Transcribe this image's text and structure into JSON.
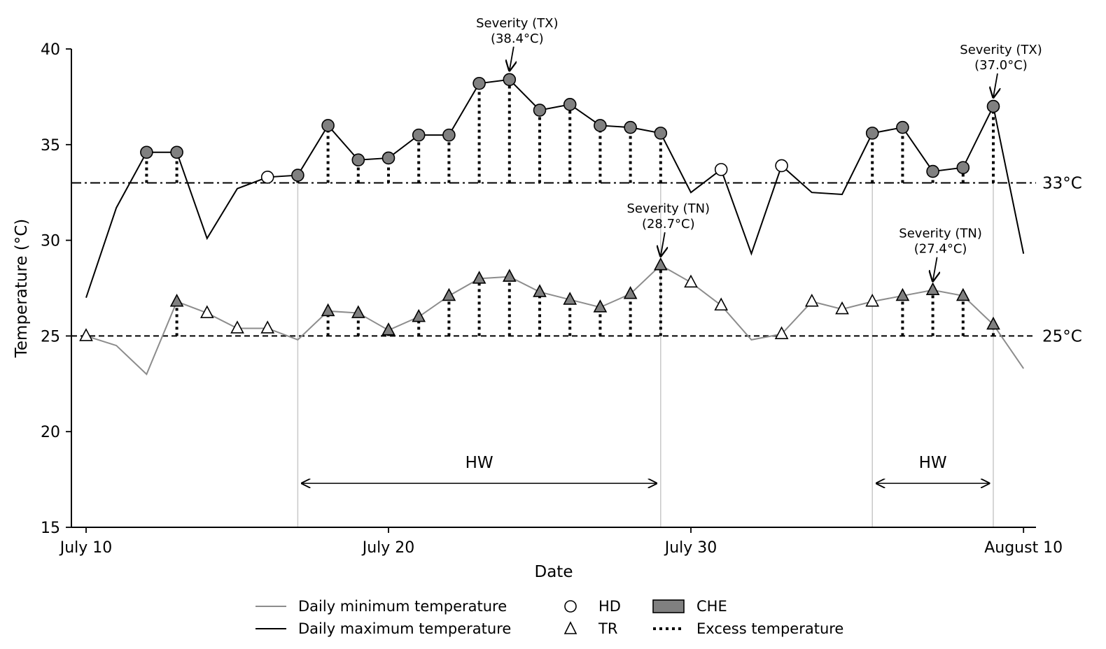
{
  "chart_data": {
    "type": "line",
    "xlabel": "Date",
    "ylabel": "Temperature (°C)",
    "ylim": [
      15,
      40
    ],
    "xlim": [
      "2000-07-10",
      "2000-08-10"
    ],
    "x_ticks": [
      {
        "label": "July 10",
        "day": 0
      },
      {
        "label": "July 20",
        "day": 10
      },
      {
        "label": "July 30",
        "day": 20
      },
      {
        "label": "August 10",
        "day": 31
      }
    ],
    "y_ticks": [
      15,
      20,
      25,
      30,
      35,
      40
    ],
    "grid": false,
    "dates": [
      "07-10",
      "07-11",
      "07-12",
      "07-13",
      "07-14",
      "07-15",
      "07-16",
      "07-17",
      "07-18",
      "07-19",
      "07-20",
      "07-21",
      "07-22",
      "07-23",
      "07-24",
      "07-25",
      "07-26",
      "07-27",
      "07-28",
      "07-29",
      "07-30",
      "07-31",
      "08-01",
      "08-02",
      "08-03",
      "08-04",
      "08-05",
      "08-06",
      "08-07",
      "08-08",
      "08-09",
      "08-10"
    ],
    "series": [
      {
        "name": "Daily maximum temperature",
        "color": "#000000",
        "values": [
          27.0,
          31.7,
          34.6,
          34.6,
          30.1,
          32.7,
          33.3,
          33.4,
          36.0,
          34.2,
          34.3,
          35.5,
          35.5,
          38.2,
          38.4,
          36.8,
          37.1,
          36.0,
          35.9,
          35.6,
          32.5,
          33.7,
          29.3,
          33.9,
          32.5,
          32.4,
          35.6,
          35.9,
          33.6,
          33.8,
          37.0,
          29.3
        ]
      },
      {
        "name": "Daily minimum temperature",
        "color": "#8c8c8c",
        "values": [
          25.0,
          24.5,
          23.0,
          26.8,
          26.2,
          25.4,
          25.4,
          24.8,
          26.3,
          26.2,
          25.3,
          26.0,
          27.1,
          28.0,
          28.1,
          27.3,
          26.9,
          26.5,
          27.2,
          28.7,
          27.8,
          26.6,
          24.8,
          25.1,
          26.8,
          26.4,
          26.8,
          27.1,
          27.4,
          27.1,
          25.6,
          23.3
        ]
      }
    ],
    "markers": {
      "tx_hd_days": [
        6,
        21,
        23
      ],
      "tx_che_days": [
        2,
        3,
        7,
        8,
        9,
        10,
        11,
        12,
        13,
        14,
        15,
        16,
        17,
        18,
        19,
        26,
        27,
        28,
        29,
        30
      ],
      "tn_tr_days": [
        0,
        4,
        5,
        6,
        20,
        21,
        23,
        24,
        25,
        26
      ],
      "tn_che_days": [
        3,
        8,
        9,
        10,
        11,
        12,
        13,
        14,
        15,
        16,
        17,
        18,
        19,
        27,
        28,
        29,
        30
      ]
    },
    "excess_tx_days": [
      2,
      3,
      7,
      8,
      9,
      10,
      11,
      12,
      13,
      14,
      15,
      16,
      17,
      18,
      19,
      26,
      27,
      28,
      29,
      30
    ],
    "excess_tn_days": [
      3,
      8,
      9,
      10,
      11,
      12,
      13,
      14,
      15,
      16,
      17,
      18,
      19,
      27,
      28,
      29,
      30
    ],
    "thresholds": [
      {
        "value": 33,
        "label": "33°C",
        "style": "dashdot"
      },
      {
        "value": 25,
        "label": "25°C",
        "style": "dashed"
      }
    ],
    "heatwave_periods": [
      {
        "label": "HW",
        "start_day": 7,
        "end_day": 19
      },
      {
        "label": "HW",
        "start_day": 26,
        "end_day": 30
      }
    ],
    "annotations": [
      {
        "line1": "Severity (TX)",
        "line2": "(38.4°C)",
        "day": 14,
        "value": 38.4
      },
      {
        "line1": "Severity (TX)",
        "line2": "(37.0°C)",
        "day": 30,
        "value": 37.0
      },
      {
        "line1": "Severity (TN)",
        "line2": "(28.7°C)",
        "day": 19,
        "value": 28.7
      },
      {
        "line1": "Severity (TN)",
        "line2": "(27.4°C)",
        "day": 28,
        "value": 27.4
      }
    ],
    "legend": {
      "placement": "bottom",
      "items": [
        {
          "label": "Daily minimum temperature",
          "symbol": "line-gray"
        },
        {
          "label": "Daily maximum temperature",
          "symbol": "line-black"
        },
        {
          "label": "HD",
          "symbol": "circle-open"
        },
        {
          "label": "TR",
          "symbol": "triangle-open"
        },
        {
          "label": "CHE",
          "symbol": "patch-gray"
        },
        {
          "label": "Excess temperature",
          "symbol": "dotted-line"
        }
      ]
    },
    "colors": {
      "che_fill": "#808080",
      "hw_bounds": "#c8c8c8"
    }
  }
}
